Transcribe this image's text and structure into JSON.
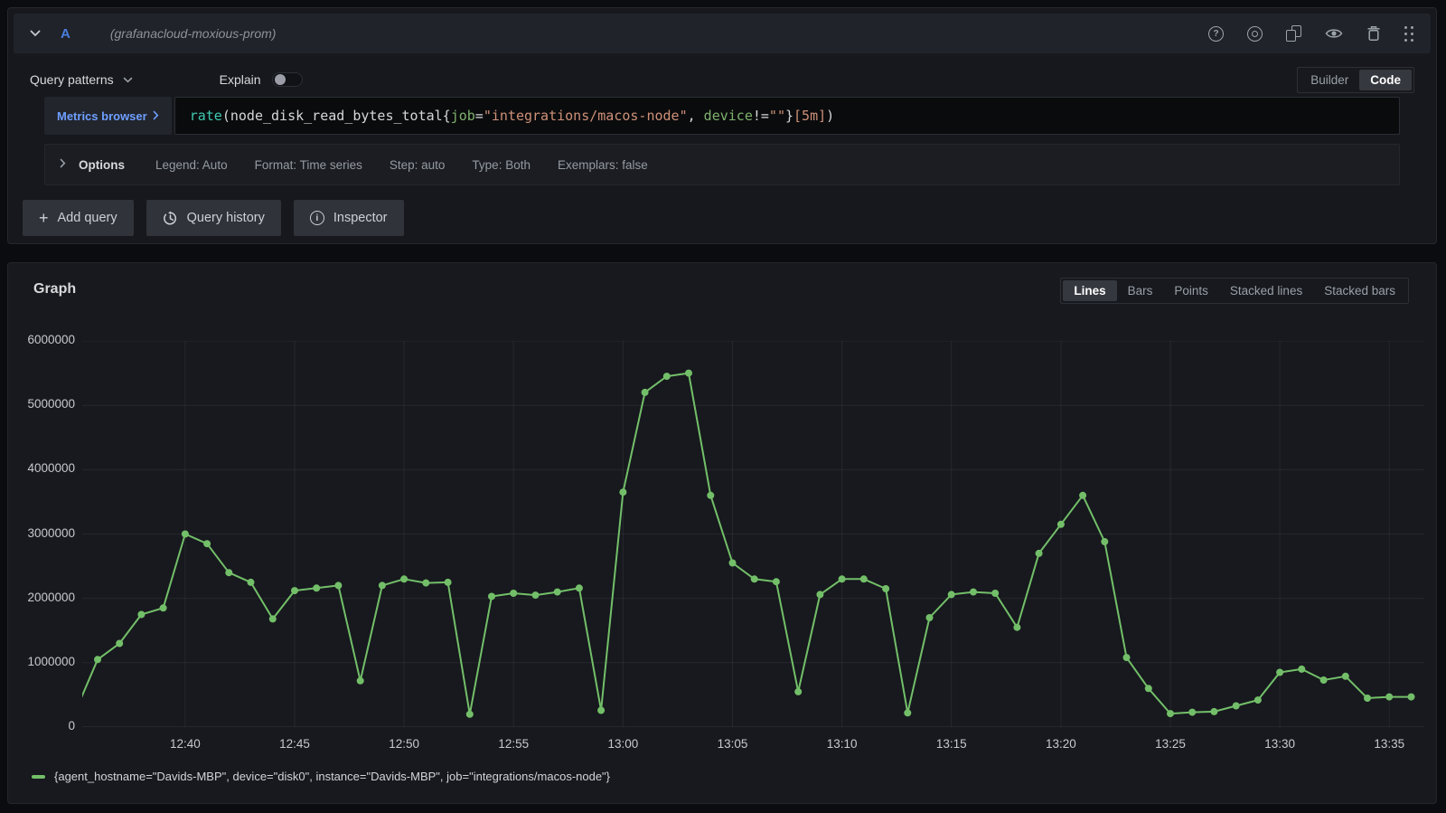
{
  "query_editor": {
    "ref_id": "A",
    "datasource_name": "(grafanacloud-moxious-prom)",
    "header_icon_names": [
      "help-icon",
      "toggle-query-icon",
      "duplicate-query-icon",
      "hide-response-icon",
      "remove-query-icon",
      "drag-handle-icon"
    ],
    "query_patterns_label": "Query patterns",
    "explain_label": "Explain",
    "explain_enabled": false,
    "editor_mode_options": [
      "Builder",
      "Code"
    ],
    "editor_mode_active": "Code",
    "metrics_browser_label": "Metrics browser",
    "query_tokens": [
      {
        "text": "rate",
        "type": "fn"
      },
      {
        "text": "(node_disk_read_bytes_total{",
        "type": "plain"
      },
      {
        "text": "job",
        "type": "label"
      },
      {
        "text": "=",
        "type": "plain"
      },
      {
        "text": "\"integrations/macos-node\"",
        "type": "string"
      },
      {
        "text": ", ",
        "type": "plain"
      },
      {
        "text": "device",
        "type": "label"
      },
      {
        "text": "!=",
        "type": "plain"
      },
      {
        "text": "\"\"",
        "type": "string"
      },
      {
        "text": "}",
        "type": "plain"
      },
      {
        "text": "[5m]",
        "type": "string"
      },
      {
        "text": ")",
        "type": "plain"
      }
    ],
    "options": {
      "label": "Options",
      "summary": [
        "Legend: Auto",
        "Format: Time series",
        "Step: auto",
        "Type: Both",
        "Exemplars: false"
      ]
    },
    "actions": [
      {
        "icon": "plus-icon",
        "glyph": "+",
        "label": "Add query"
      },
      {
        "icon": "history-icon",
        "label": "Query history"
      },
      {
        "icon": "info-icon",
        "glyph": "i",
        "label": "Inspector"
      }
    ],
    "help_glyph": "?"
  },
  "graph_panel": {
    "title": "Graph",
    "display_modes": [
      "Lines",
      "Bars",
      "Points",
      "Stacked lines",
      "Stacked bars"
    ],
    "active_mode": "Lines",
    "legend_items": [
      {
        "label": "{agent_hostname=\"Davids-MBP\", device=\"disk0\", instance=\"Davids-MBP\", job=\"integrations/macos-node\"}",
        "color": "#73bf69"
      }
    ]
  },
  "chart_data": {
    "type": "line",
    "title": "Graph",
    "grid": true,
    "legend_position": "bottom-left",
    "ylim": [
      0,
      6000000
    ],
    "y_ticks": [
      0,
      1000000,
      2000000,
      3000000,
      4000000,
      5000000,
      6000000
    ],
    "x_ticks": [
      "12:40",
      "12:45",
      "12:50",
      "12:55",
      "13:00",
      "13:05",
      "13:10",
      "13:15",
      "13:20",
      "13:25",
      "13:30",
      "13:35"
    ],
    "xlim_minutes": [
      755.3,
      816.6
    ],
    "series": [
      {
        "name": "{agent_hostname=\"Davids-MBP\", device=\"disk0\", instance=\"Davids-MBP\", job=\"integrations/macos-node\"}",
        "color": "#73bf69",
        "points": [
          [
            "12:35",
            250000
          ],
          [
            "12:36",
            1050000
          ],
          [
            "12:37",
            1300000
          ],
          [
            "12:38",
            1750000
          ],
          [
            "12:39",
            1850000
          ],
          [
            "12:40",
            3000000
          ],
          [
            "12:41",
            2850000
          ],
          [
            "12:42",
            2400000
          ],
          [
            "12:43",
            2250000
          ],
          [
            "12:44",
            1680000
          ],
          [
            "12:45",
            2120000
          ],
          [
            "12:46",
            2160000
          ],
          [
            "12:47",
            2200000
          ],
          [
            "12:48",
            720000
          ],
          [
            "12:49",
            2200000
          ],
          [
            "12:50",
            2300000
          ],
          [
            "12:51",
            2240000
          ],
          [
            "12:52",
            2250000
          ],
          [
            "12:53",
            200000
          ],
          [
            "12:54",
            2030000
          ],
          [
            "12:55",
            2080000
          ],
          [
            "12:56",
            2050000
          ],
          [
            "12:57",
            2100000
          ],
          [
            "12:58",
            2160000
          ],
          [
            "12:59",
            260000
          ],
          [
            "13:00",
            3650000
          ],
          [
            "13:01",
            5200000
          ],
          [
            "13:02",
            5450000
          ],
          [
            "13:03",
            5500000
          ],
          [
            "13:04",
            3600000
          ],
          [
            "13:05",
            2550000
          ],
          [
            "13:06",
            2300000
          ],
          [
            "13:07",
            2260000
          ],
          [
            "13:08",
            550000
          ],
          [
            "13:09",
            2060000
          ],
          [
            "13:10",
            2300000
          ],
          [
            "13:11",
            2300000
          ],
          [
            "13:12",
            2150000
          ],
          [
            "13:13",
            220000
          ],
          [
            "13:14",
            1700000
          ],
          [
            "13:15",
            2060000
          ],
          [
            "13:16",
            2100000
          ],
          [
            "13:17",
            2080000
          ],
          [
            "13:18",
            1550000
          ],
          [
            "13:19",
            2700000
          ],
          [
            "13:20",
            3150000
          ],
          [
            "13:21",
            3600000
          ],
          [
            "13:22",
            2880000
          ],
          [
            "13:23",
            1080000
          ],
          [
            "13:24",
            600000
          ],
          [
            "13:25",
            210000
          ],
          [
            "13:26",
            230000
          ],
          [
            "13:27",
            240000
          ],
          [
            "13:28",
            330000
          ],
          [
            "13:29",
            420000
          ],
          [
            "13:30",
            850000
          ],
          [
            "13:31",
            900000
          ],
          [
            "13:32",
            730000
          ],
          [
            "13:33",
            790000
          ],
          [
            "13:34",
            450000
          ],
          [
            "13:35",
            470000
          ],
          [
            "13:36",
            470000
          ]
        ]
      }
    ]
  },
  "colors": {
    "series_green": "#73bf69",
    "link_blue": "#6e9fff",
    "ref_blue": "#477edb",
    "code_fn": "#3dc9b0",
    "code_label": "#7eb26d",
    "code_string": "#ce9178",
    "panel_bg": "#17191e",
    "page_bg": "#0b0c0f"
  }
}
